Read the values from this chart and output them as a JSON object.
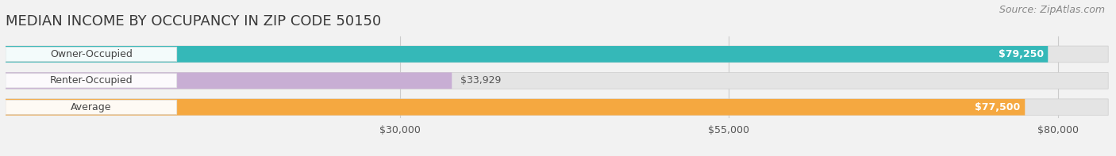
{
  "title": "MEDIAN INCOME BY OCCUPANCY IN ZIP CODE 50150",
  "source": "Source: ZipAtlas.com",
  "categories": [
    "Owner-Occupied",
    "Renter-Occupied",
    "Average"
  ],
  "values": [
    79250,
    33929,
    77500
  ],
  "bar_colors": [
    "#35b8b8",
    "#c8aed4",
    "#f5a840"
  ],
  "value_labels": [
    "$79,250",
    "$33,929",
    "$77,500"
  ],
  "x_ticks": [
    30000,
    55000,
    80000
  ],
  "x_tick_labels": [
    "$30,000",
    "$55,000",
    "$80,000"
  ],
  "xmax": 84000,
  "background_color": "#f2f2f2",
  "bar_bg_color": "#e4e4e4",
  "title_fontsize": 13,
  "source_fontsize": 9,
  "tick_fontsize": 9,
  "bar_label_fontsize": 9,
  "value_label_fontsize": 9
}
